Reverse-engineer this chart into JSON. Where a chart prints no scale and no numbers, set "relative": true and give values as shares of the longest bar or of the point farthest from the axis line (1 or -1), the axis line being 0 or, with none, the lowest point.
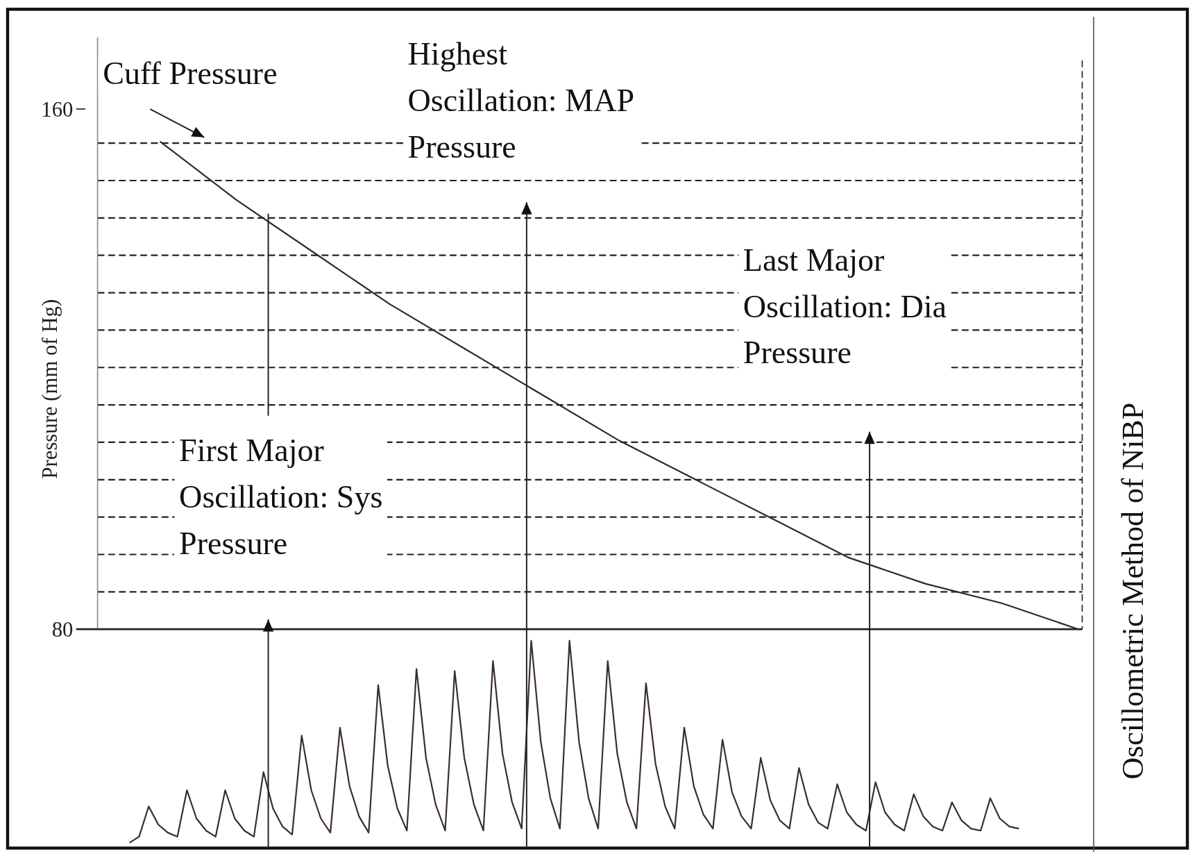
{
  "chart_data": [
    {
      "type": "line",
      "ylabel": "Pressure (mm of Hg)",
      "categories": [
        null,
        null,
        null,
        null,
        null,
        null,
        null,
        null,
        null,
        null,
        null,
        null,
        null
      ],
      "series": [
        {
          "color": "#2b2b2b",
          "values": [
            155,
            146,
            138,
            130,
            123,
            116,
            109,
            103,
            97,
            91,
            87,
            84,
            80
          ]
        }
      ],
      "ylim": [
        80,
        171
      ],
      "yticks": [
        80,
        {
          "value": 85.75,
          "label": null
        },
        {
          "value": 91.5,
          "label": null
        },
        {
          "value": 97.25,
          "label": null
        },
        {
          "value": 103,
          "label": null
        },
        {
          "value": 108.75,
          "label": null
        },
        {
          "value": 114.5,
          "label": null
        },
        {
          "value": 120.25,
          "label": null
        },
        {
          "value": 126,
          "label": null
        },
        {
          "value": 131.75,
          "label": null
        },
        {
          "value": 137.5,
          "label": null
        },
        {
          "value": 143.25,
          "label": null
        },
        {
          "value": 149,
          "label": null
        },
        {
          "value": 154.75,
          "label": null
        },
        160
      ],
      "grid": "y",
      "tick_labels": "y",
      "annotations": [
        "Cuff Pressure",
        "Highest Oscillation: MAP Pressure",
        "Last Major Oscillation: Dia Pressure",
        "First Major Oscillation: Sys Pressure"
      ]
    },
    {
      "type": "line",
      "relative": true,
      "tick_labels": false,
      "categories": [
        null,
        null,
        null,
        null,
        null,
        null,
        null,
        null,
        null,
        null,
        null,
        null,
        null,
        null,
        null,
        null,
        null,
        null,
        null,
        null,
        null,
        null,
        null,
        null,
        null,
        null,
        null,
        null,
        null,
        null,
        null,
        null,
        null,
        null,
        null,
        null,
        null,
        null,
        null,
        null,
        null,
        null,
        null,
        null,
        null,
        null,
        null,
        null,
        null,
        null,
        null,
        null,
        null,
        null,
        null,
        null,
        null,
        null,
        null,
        null,
        null,
        null,
        null,
        null,
        null,
        null,
        null,
        null,
        null,
        null,
        null,
        null,
        null,
        null,
        null,
        null,
        null,
        null,
        null,
        null,
        null,
        null,
        null,
        null,
        null,
        null,
        null,
        null,
        null,
        null,
        null,
        null,
        null,
        null
      ],
      "series": [
        {
          "color": "#3a2a3a",
          "values": [
            0,
            0.03,
            0.18,
            0.09,
            0.05,
            0.03,
            0.26,
            0.12,
            0.06,
            0.03,
            0.26,
            0.12,
            0.06,
            0.03,
            0.35,
            0.17,
            0.08,
            0.04,
            0.53,
            0.26,
            0.12,
            0.05,
            0.57,
            0.28,
            0.13,
            0.05,
            0.78,
            0.38,
            0.17,
            0.06,
            0.86,
            0.42,
            0.19,
            0.06,
            0.85,
            0.42,
            0.19,
            0.06,
            0.9,
            0.44,
            0.2,
            0.07,
            1,
            0.5,
            0.22,
            0.07,
            1,
            0.5,
            0.22,
            0.07,
            0.9,
            0.44,
            0.2,
            0.07,
            0.79,
            0.39,
            0.18,
            0.07,
            0.57,
            0.28,
            0.14,
            0.07,
            0.51,
            0.25,
            0.13,
            0.07,
            0.42,
            0.21,
            0.11,
            0.07,
            0.37,
            0.19,
            0.1,
            0.07,
            0.29,
            0.15,
            0.09,
            0.06,
            0.3,
            0.15,
            0.09,
            0.06,
            0.24,
            0.13,
            0.08,
            0.06,
            0.2,
            0.11,
            0.07,
            0.06,
            0.22,
            0.12,
            0.08,
            0.07
          ]
        }
      ]
    },
    {
      "type": "other",
      "title": "Oscillometric Method of NiBP"
    }
  ]
}
